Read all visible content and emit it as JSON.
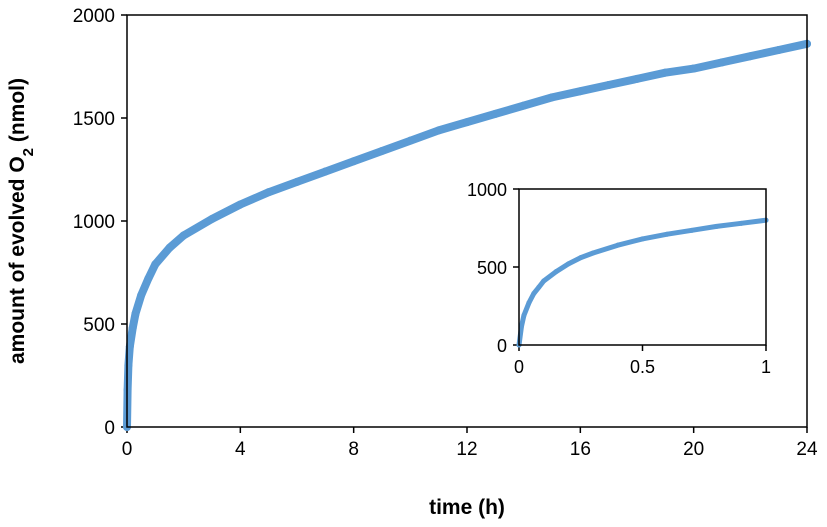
{
  "chart_data": [
    {
      "type": "line",
      "title": "",
      "xlabel": "time (h)",
      "ylabel": "amount of evolved O2 (nmol)",
      "ylabel_parts": {
        "before": "amount of evolved O",
        "subscript": "2",
        "after": " (nmol)"
      },
      "xlim": [
        0,
        24
      ],
      "ylim": [
        0,
        2000
      ],
      "xticks": [
        0,
        4,
        8,
        12,
        16,
        20,
        24
      ],
      "yticks": [
        0,
        500,
        1000,
        1500,
        2000
      ],
      "grid": false,
      "legend": "none",
      "line_color": "#5b9bd5",
      "series": [
        {
          "x": [
            0,
            0.02,
            0.05,
            0.1,
            0.2,
            0.3,
            0.5,
            0.75,
            1,
            1.5,
            2,
            3,
            4,
            5,
            6,
            7,
            8,
            9,
            10,
            11,
            12,
            13,
            14,
            15,
            16,
            17,
            18,
            19,
            20,
            21,
            22,
            23,
            24
          ],
          "y": [
            0,
            180,
            300,
            390,
            480,
            550,
            640,
            720,
            790,
            870,
            930,
            1010,
            1080,
            1140,
            1190,
            1240,
            1290,
            1340,
            1390,
            1440,
            1480,
            1520,
            1560,
            1600,
            1630,
            1660,
            1690,
            1720,
            1740,
            1770,
            1800,
            1830,
            1860
          ]
        }
      ]
    },
    {
      "type": "line",
      "inset": true,
      "title": "",
      "xlabel": "",
      "ylabel": "",
      "xlim": [
        0,
        1
      ],
      "ylim": [
        0,
        1000
      ],
      "xticks": [
        0,
        0.5,
        1
      ],
      "xtick_labels": [
        "0",
        "0.5",
        "1"
      ],
      "yticks": [
        0,
        500,
        1000
      ],
      "grid": false,
      "legend": "none",
      "line_color": "#5b9bd5",
      "series": [
        {
          "x": [
            0,
            0.01,
            0.02,
            0.04,
            0.06,
            0.08,
            0.1,
            0.15,
            0.2,
            0.25,
            0.3,
            0.4,
            0.5,
            0.6,
            0.7,
            0.8,
            0.9,
            1
          ],
          "y": [
            0,
            120,
            190,
            270,
            330,
            370,
            410,
            470,
            520,
            560,
            590,
            640,
            680,
            710,
            735,
            760,
            780,
            800
          ]
        }
      ]
    }
  ]
}
